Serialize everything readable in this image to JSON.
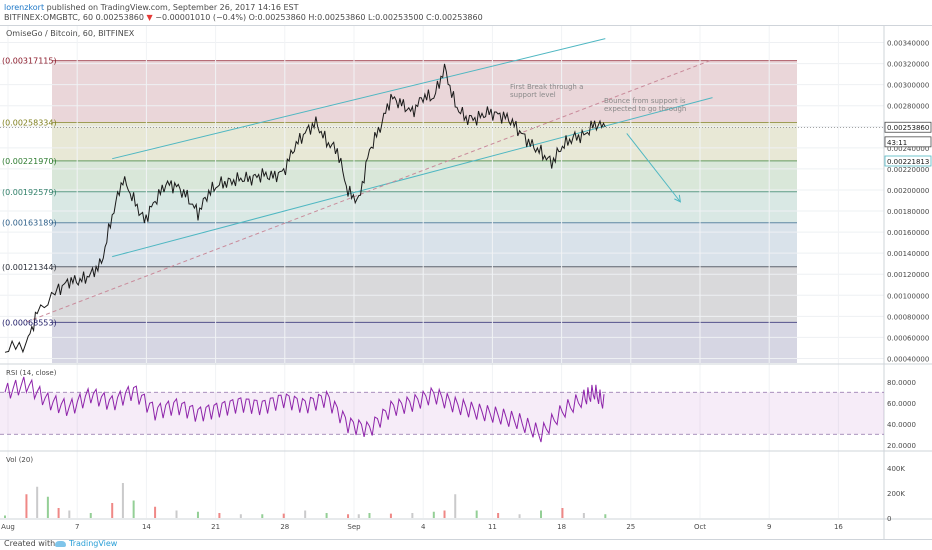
{
  "header": {
    "author": "lorenzkort",
    "published": "published on TradingView.com, September 26, 2017 14:16 EST",
    "symbol": "BITFINEX:OMGBTC, 60",
    "change_marker": "▼",
    "ohlc": "−0.00001010 (−0.4%) O:0.00253860 H:0.00253860 L:0.00253500 C:0.00253860",
    "last_price_prefix": "0.00253860"
  },
  "legend": {
    "main_title": "OmiseGo / Bitcoin, 60, BITFINEX",
    "rsi_title": "RSI (14, close)",
    "vol_title": "Vol (20)"
  },
  "annotations": {
    "first_break": [
      "First Break through a",
      "support level"
    ],
    "bounce": [
      "Bounce from support is",
      "expected to go through"
    ]
  },
  "footer": {
    "created": "Created with",
    "brand": "TradingView"
  },
  "colors": {
    "price_line": "#1a1a1a",
    "trend_line": "#4fb7c2",
    "rsi_line": "#8e24aa",
    "volume_bar": "#a6a7a8",
    "up_accent": "#4caf50",
    "down_accent": "#e53935",
    "fib_bands": [
      "#8b1a2a",
      "#7f7f1e",
      "#2d7b2f",
      "#2f7f68",
      "#2d5f89",
      "#2b2f3a",
      "#1d1a66"
    ]
  },
  "chart_data": {
    "type": "line",
    "title": "OmiseGo / Bitcoin, 60, BITFINEX",
    "x_ticks": [
      "Aug",
      "7",
      "14",
      "21",
      "28",
      "Sep",
      "4",
      "11",
      "18",
      "25",
      "Oct",
      "9",
      "16"
    ],
    "y_ticks": [
      "0.00340000",
      "0.00320000",
      "0.00300000",
      "0.00280000",
      "0.00260000",
      "0.00240000",
      "0.00220000",
      "0.00200000",
      "0.00180000",
      "0.00160000",
      "0.00140000",
      "0.00120000",
      "0.00100000",
      "0.00080000",
      "0.00060000",
      "0.00040000"
    ],
    "ylim": [
      0.0003,
      0.0035
    ],
    "fib_levels": [
      {
        "label": "0.00317115",
        "value": 0.00317115
      },
      {
        "label": "0.00258334",
        "value": 0.00258334
      },
      {
        "label": "0.00221970",
        "value": 0.0022197
      },
      {
        "label": "0.00192579",
        "value": 0.00192579
      },
      {
        "label": "0.00163189",
        "value": 0.00163189
      },
      {
        "label": "0.00121344",
        "value": 0.00121344
      },
      {
        "label": "0.00068553",
        "value": 0.00068553
      }
    ],
    "fib_floor": 0.0003,
    "price_badges": [
      {
        "label": "0.00253860",
        "value": 0.0025386
      },
      {
        "label": "43:11",
        "value": 0.0024
      },
      {
        "label": "0.00221813",
        "value": 0.00221813
      }
    ],
    "series": [
      {
        "name": "OMGBTC",
        "x": [
          0,
          2,
          3,
          5,
          6,
          7,
          8,
          9,
          10,
          11,
          12,
          13,
          14,
          15,
          16,
          17,
          18,
          19,
          20,
          21,
          22,
          23,
          24,
          25,
          26,
          27,
          28,
          29,
          30,
          31,
          32,
          33,
          34,
          35,
          36,
          37,
          38,
          39,
          40,
          41,
          42,
          43,
          44,
          45,
          46,
          47,
          48,
          49,
          50,
          51,
          52,
          53,
          54,
          55,
          56
        ],
        "y": [
          0.00043,
          0.00048,
          0.00078,
          0.001,
          0.00108,
          0.00108,
          0.00114,
          0.00125,
          0.0017,
          0.00205,
          0.00185,
          0.00165,
          0.00184,
          0.002,
          0.00198,
          0.00188,
          0.00172,
          0.00192,
          0.002,
          0.00202,
          0.00205,
          0.00205,
          0.00209,
          0.00207,
          0.00212,
          0.00235,
          0.00249,
          0.00258,
          0.0024,
          0.00232,
          0.00192,
          0.00184,
          0.00232,
          0.00254,
          0.00282,
          0.00276,
          0.00268,
          0.00283,
          0.00282,
          0.0031,
          0.00275,
          0.00262,
          0.00262,
          0.00268,
          0.00266,
          0.00262,
          0.0025,
          0.00238,
          0.0023,
          0.0022,
          0.00236,
          0.00244,
          0.00246,
          0.00257,
          0.00254
        ]
      },
      {
        "name": "RSI (14, close)",
        "x": [
          0,
          2,
          4,
          6,
          8,
          10,
          12,
          14,
          16,
          18,
          20,
          22,
          24,
          26,
          28,
          30,
          32,
          34,
          36,
          38,
          40,
          42,
          44,
          46,
          48,
          50,
          52,
          54,
          55,
          56
        ],
        "y": [
          70,
          78,
          62,
          55,
          68,
          60,
          72,
          52,
          58,
          50,
          55,
          60,
          57,
          64,
          58,
          65,
          40,
          35,
          55,
          60,
          68,
          58,
          52,
          48,
          42,
          30,
          52,
          64,
          70,
          58
        ]
      }
    ],
    "rsi": {
      "ylim": [
        15,
        95
      ],
      "y_ticks": [
        "80.0000",
        "60.0000",
        "40.0000",
        "20.0000"
      ],
      "bands": [
        70,
        30
      ]
    },
    "volume": {
      "ylim": [
        0,
        520000
      ],
      "y_ticks": [
        "400K",
        "200K",
        "0"
      ],
      "x": [
        0,
        2,
        3,
        4,
        5,
        6,
        8,
        10,
        11,
        12,
        14,
        16,
        18,
        20,
        22,
        24,
        26,
        28,
        30,
        32,
        33,
        34,
        36,
        38,
        40,
        41,
        42,
        44,
        46,
        48,
        50,
        52,
        54,
        56
      ],
      "y": [
        20000,
        190000,
        250000,
        170000,
        80000,
        60000,
        40000,
        120000,
        280000,
        140000,
        90000,
        60000,
        50000,
        40000,
        30000,
        30000,
        35000,
        60000,
        40000,
        30000,
        30000,
        40000,
        35000,
        40000,
        50000,
        60000,
        190000,
        60000,
        40000,
        30000,
        60000,
        80000,
        40000,
        30000
      ]
    },
    "trend_lines": [
      {
        "name": "upper channel",
        "x": [
          10,
          56
        ],
        "y": [
          0.00224,
          0.00338
        ]
      },
      {
        "name": "lower channel",
        "x": [
          10,
          66
        ],
        "y": [
          0.00131,
          0.00282
        ]
      },
      {
        "name": "support",
        "x": [
          2,
          66
        ],
        "y": [
          0.00069,
          0.00318
        ]
      },
      {
        "name": "projection",
        "x": [
          58,
          63
        ],
        "y": [
          0.00248,
          0.00183
        ]
      }
    ]
  }
}
